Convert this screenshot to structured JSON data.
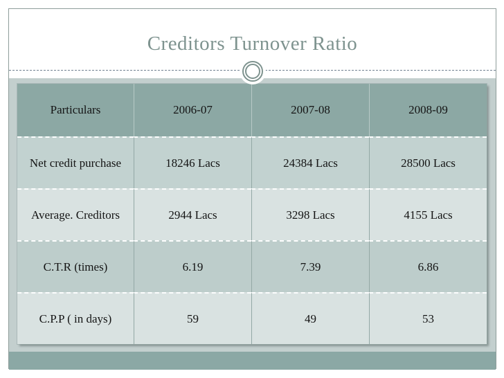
{
  "slide": {
    "title": "Creditors Turnover Ratio"
  },
  "table": {
    "columns": [
      "Particulars",
      "2006-07",
      "2007-08",
      "2008-09"
    ],
    "rows": [
      {
        "label": "Net credit purchase",
        "values": [
          "18246 Lacs",
          "24384 Lacs",
          "28500 Lacs"
        ]
      },
      {
        "label": "Average. Creditors",
        "values": [
          "2944 Lacs",
          "3298 Lacs",
          "4155 Lacs"
        ]
      },
      {
        "label": "C.T.R (times)",
        "values": [
          "6.19",
          "7.39",
          "6.86"
        ]
      },
      {
        "label": "C.P.P ( in days)",
        "values": [
          "59",
          "49",
          "53"
        ]
      }
    ]
  },
  "colors": {
    "title_text": "#7e938f",
    "header_row_bg": "#8ca8a4",
    "row_medium_bg": "#c2d2d0",
    "row_darker_bg": "#bdcdcb",
    "row_light_bg": "#d9e2e1",
    "content_bg": "#c3cfce",
    "footer_band_bg": "#8ba8a5",
    "dashed_line": "#708090",
    "ornament_ring": "#7e938f",
    "cell_text": "#141414"
  }
}
